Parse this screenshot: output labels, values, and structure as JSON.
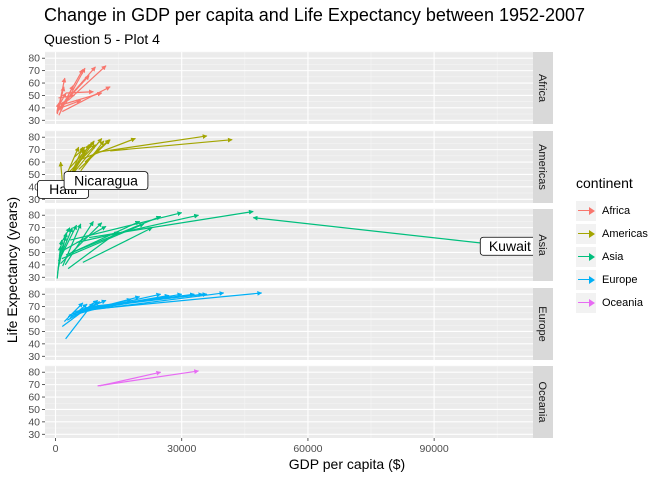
{
  "title": "Change in GDP per capita and Life Expectancy between 1952-2007",
  "subtitle": "Question 5 - Plot 4",
  "legend": {
    "title": "continent",
    "items": [
      {
        "label": "Africa",
        "color": "#F8766D"
      },
      {
        "label": "Americas",
        "color": "#A3A500"
      },
      {
        "label": "Asia",
        "color": "#00BF7D"
      },
      {
        "label": "Europe",
        "color": "#00B0F6"
      },
      {
        "label": "Oceania",
        "color": "#E76BF3"
      }
    ]
  },
  "chart_data": {
    "type": "faceted-arrow-segments",
    "xlabel": "GDP per capita ($)",
    "ylabel": "Life Expectancy (years)",
    "xlim": [
      -2500,
      113500
    ],
    "x_ticks": [
      0,
      30000,
      60000,
      90000
    ],
    "x_tick_labels": [
      "0",
      "30000",
      "60000",
      "90000"
    ],
    "y_ticks": [
      30,
      40,
      50,
      60,
      70,
      80
    ],
    "ylim": [
      27,
      85
    ],
    "grid": true,
    "legend_position": "right",
    "facet_strip_position": "right",
    "facets": [
      {
        "name": "Africa",
        "color": "#F8766D",
        "segments": [
          [
            300,
            36,
            1900,
            45
          ],
          [
            500,
            40,
            2500,
            52
          ],
          [
            800,
            34,
            4200,
            58
          ],
          [
            1000,
            38,
            6500,
            71
          ],
          [
            1500,
            42,
            8000,
            66
          ],
          [
            2500,
            44,
            7000,
            72
          ],
          [
            3000,
            46,
            12000,
            74
          ],
          [
            1200,
            41,
            9500,
            73
          ],
          [
            2000,
            43,
            11000,
            52
          ],
          [
            500,
            39,
            6000,
            46
          ],
          [
            400,
            35,
            2000,
            57
          ],
          [
            1600,
            37,
            13000,
            57
          ],
          [
            700,
            48,
            4500,
            50
          ],
          [
            900,
            43,
            2200,
            64
          ],
          [
            2500,
            52,
            9000,
            53
          ],
          [
            350,
            37,
            800,
            44
          ]
        ]
      },
      {
        "name": "Americas",
        "color": "#A3A500",
        "segments": [
          [
            1800,
            38,
            1200,
            60
          ],
          [
            2500,
            43,
            7000,
            70
          ],
          [
            3500,
            48,
            11000,
            79
          ],
          [
            5500,
            54,
            13000,
            78
          ],
          [
            4000,
            50,
            8000,
            74
          ],
          [
            3000,
            51,
            9500,
            74
          ],
          [
            2000,
            45,
            5500,
            72
          ],
          [
            3300,
            55,
            8700,
            75
          ],
          [
            6000,
            53,
            11500,
            77
          ],
          [
            7000,
            60,
            12800,
            78
          ],
          [
            10000,
            68,
            36000,
            81
          ],
          [
            13000,
            69,
            42000,
            78
          ],
          [
            4500,
            64,
            7000,
            72
          ],
          [
            2700,
            42,
            6500,
            72
          ],
          [
            3700,
            50,
            9200,
            77
          ],
          [
            5900,
            62,
            19000,
            79
          ]
        ],
        "labels": [
          {
            "text": "Haiti",
            "x": 1800,
            "y": 38
          },
          {
            "text": "Nicaragua",
            "x": 12000,
            "y": 45
          }
        ]
      },
      {
        "name": "Asia",
        "color": "#00BF7D",
        "segments": [
          [
            400,
            29,
            1200,
            55
          ],
          [
            700,
            38,
            2600,
            66
          ],
          [
            900,
            44,
            5000,
            72
          ],
          [
            1200,
            41,
            11000,
            74
          ],
          [
            2500,
            48,
            25000,
            79
          ],
          [
            3500,
            60,
            30000,
            82
          ],
          [
            4000,
            50,
            20000,
            75
          ],
          [
            5000,
            58,
            34000,
            80
          ],
          [
            8000,
            62,
            47000,
            83
          ],
          [
            1500,
            45,
            21000,
            73
          ],
          [
            6500,
            42,
            23000,
            70
          ],
          [
            2000,
            52,
            12000,
            71
          ],
          [
            1700,
            39,
            6000,
            73
          ],
          [
            900,
            47,
            2500,
            63
          ],
          [
            3000,
            37,
            15000,
            67
          ],
          [
            700,
            43,
            4000,
            70
          ],
          [
            500,
            33,
            1500,
            60
          ],
          [
            108000,
            55,
            47000,
            78
          ],
          [
            1100,
            56,
            3400,
            70
          ],
          [
            2300,
            40,
            9000,
            75
          ]
        ],
        "labels": [
          {
            "text": "Kuwait",
            "x": 108000,
            "y": 55
          }
        ]
      },
      {
        "name": "Europe",
        "color": "#00B0F6",
        "segments": [
          [
            1600,
            54,
            10000,
            75
          ],
          [
            2400,
            44,
            9000,
            73
          ],
          [
            2800,
            59,
            10500,
            74
          ],
          [
            4000,
            64,
            20000,
            78
          ],
          [
            5500,
            66,
            30000,
            80
          ],
          [
            7500,
            67,
            40000,
            81
          ],
          [
            9000,
            68,
            49000,
            81
          ],
          [
            3000,
            62,
            18000,
            76
          ],
          [
            5000,
            65,
            25000,
            80
          ],
          [
            3500,
            61,
            7500,
            72
          ],
          [
            6000,
            68,
            35000,
            80
          ],
          [
            4500,
            66,
            27000,
            79
          ],
          [
            3200,
            63,
            12000,
            75
          ],
          [
            2100,
            58,
            6500,
            73
          ],
          [
            7000,
            69,
            33000,
            80
          ],
          [
            8000,
            70,
            36000,
            80
          ]
        ]
      },
      {
        "name": "Oceania",
        "color": "#E76BF3",
        "segments": [
          [
            10000,
            69,
            34000,
            81
          ],
          [
            10500,
            69,
            25000,
            80
          ]
        ]
      }
    ]
  }
}
